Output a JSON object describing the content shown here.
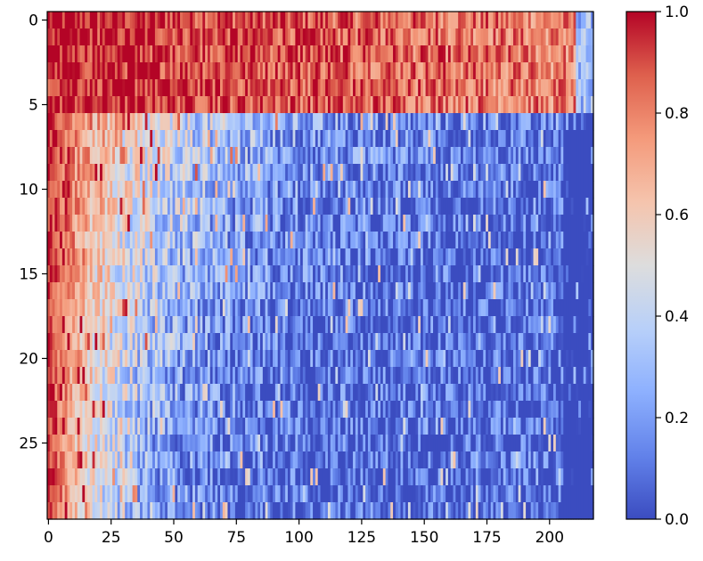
{
  "chart_data": {
    "type": "heatmap",
    "colormap": "coolwarm",
    "title": "",
    "xlabel": "",
    "ylabel": "",
    "n_rows": 30,
    "n_cols": 218,
    "xlim": [
      -0.5,
      217.5
    ],
    "ylim": [
      29.5,
      -0.5
    ],
    "x_ticks": [
      0,
      25,
      50,
      75,
      100,
      125,
      150,
      175,
      200
    ],
    "y_ticks": [
      0,
      5,
      10,
      15,
      20,
      25
    ],
    "value_range": [
      0.0,
      1.0
    ],
    "colorbar_ticks": [
      "0.0",
      "0.2",
      "0.4",
      "0.6",
      "0.8",
      "1.0"
    ],
    "pattern": {
      "description_values": "Approximate field read from the image: values near 1.0 at left columns (0-10), decaying to ~0.05 at right columns; rows 0-5 stay high (~0.75) across most columns; lower rows decay faster with column index; high-frequency noise throughout.",
      "top_band_rows": [
        0,
        5
      ],
      "top_band_level": 0.78,
      "left_edge_level": 0.95,
      "right_edge_level": 0.05
    },
    "grid": false,
    "colorbar": "right"
  }
}
